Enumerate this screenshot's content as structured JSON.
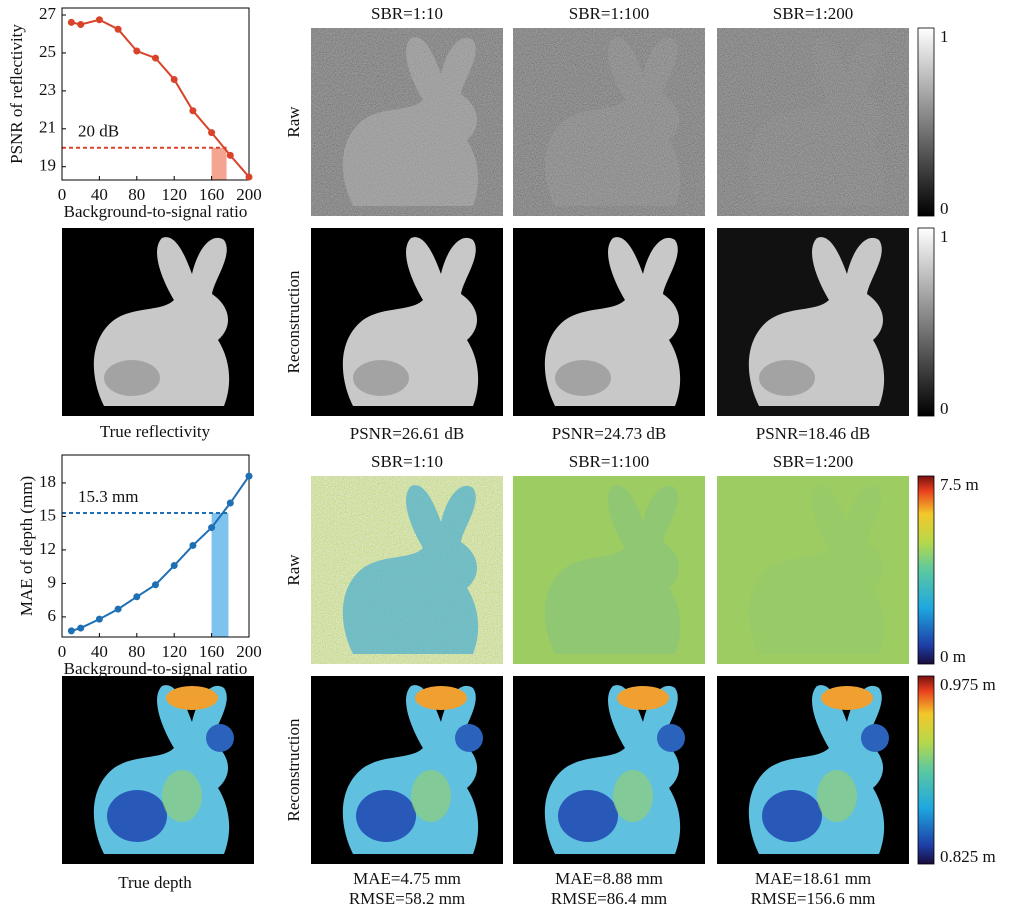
{
  "chart_data": [
    {
      "type": "line",
      "y_label": "PSNR of reflectivity",
      "x_label": "Background-to-signal ratio",
      "x": [
        10,
        20,
        40,
        60,
        80,
        100,
        120,
        140,
        160,
        180,
        200
      ],
      "series": [
        {
          "color": "#d8432a",
          "values": [
            26.61,
            26.5,
            26.75,
            26.25,
            25.1,
            24.73,
            23.6,
            21.95,
            20.8,
            19.6,
            18.46
          ]
        }
      ],
      "xlim": [
        0,
        200
      ],
      "xticks": [
        0,
        40,
        80,
        120,
        160,
        200
      ],
      "ylim": [
        18.3,
        27.37
      ],
      "yticks": [
        19,
        21,
        23,
        25,
        27
      ],
      "threshold": {
        "value": 20,
        "label": "20 dB"
      },
      "shaded_range": [
        160,
        176
      ],
      "shade_color": "#f4a590"
    },
    {
      "type": "line",
      "y_label": "MAE of depth (mm)",
      "x_label": "Background-to-signal ratio",
      "x": [
        10,
        20,
        40,
        60,
        80,
        100,
        120,
        140,
        160,
        180,
        200
      ],
      "series": [
        {
          "color": "#1f6fb5",
          "values": [
            4.75,
            5.0,
            5.8,
            6.7,
            7.8,
            8.88,
            10.6,
            12.4,
            14.0,
            16.2,
            18.61
          ]
        }
      ],
      "xlim": [
        0,
        200
      ],
      "xticks": [
        0,
        40,
        80,
        120,
        160,
        200
      ],
      "ylim": [
        4.2,
        20.5
      ],
      "yticks": [
        6,
        9,
        12,
        15,
        18
      ],
      "threshold": {
        "value": 15.3,
        "label": "15.3 mm"
      },
      "shaded_range": [
        160,
        178
      ],
      "shade_color": "#7ec3ee"
    }
  ],
  "reflectivity": {
    "columns": [
      "SBR=1:10",
      "SBR=1:100",
      "SBR=1:200"
    ],
    "rows": [
      "Raw",
      "Reconstruction"
    ],
    "truth_label": "True reflectivity",
    "metrics": [
      "PSNR=26.61 dB",
      "PSNR=24.73 dB",
      "PSNR=18.46 dB"
    ],
    "colorbars": [
      {
        "top": "1",
        "bottom": "0"
      },
      {
        "top": "1",
        "bottom": "0"
      }
    ]
  },
  "depth": {
    "columns": [
      "SBR=1:10",
      "SBR=1:100",
      "SBR=1:200"
    ],
    "rows": [
      "Raw",
      "Reconstruction"
    ],
    "truth_label": "True depth",
    "metrics": [
      {
        "mae": "MAE=4.75 mm",
        "rmse": "RMSE=58.2 mm"
      },
      {
        "mae": "MAE=8.88 mm",
        "rmse": "RMSE=86.4 mm"
      },
      {
        "mae": "MAE=18.61 mm",
        "rmse": "RMSE=156.6 mm"
      }
    ],
    "colorbars": [
      {
        "top": "7.5 m",
        "bottom": "0 m"
      },
      {
        "top": "0.975 m",
        "bottom": "0.825 m"
      }
    ]
  }
}
